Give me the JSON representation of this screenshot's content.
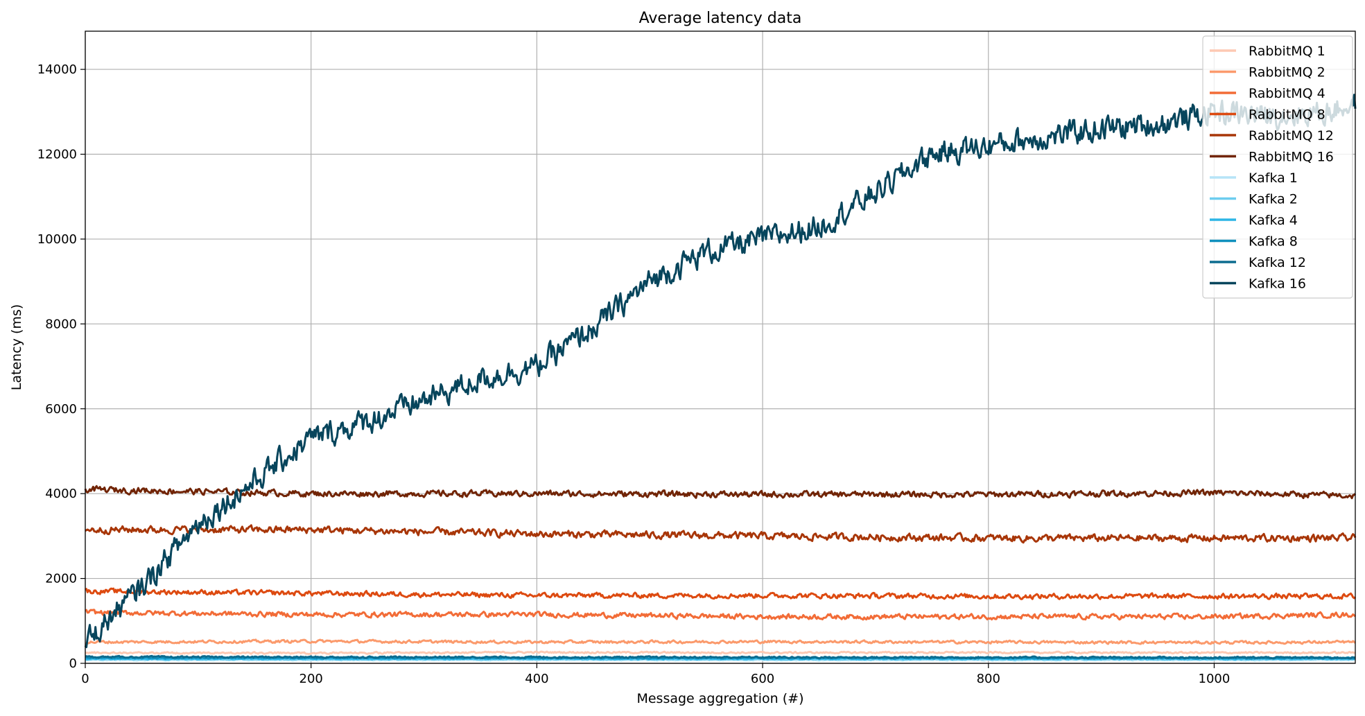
{
  "chart_data": {
    "type": "line",
    "title": "Average latency data",
    "xlabel": "Message aggregation (#)",
    "ylabel": "Latency (ms)",
    "xlim": [
      0,
      1125
    ],
    "ylim": [
      0,
      14900
    ],
    "x_ticks": [
      0,
      200,
      400,
      600,
      800,
      1000
    ],
    "y_ticks": [
      0,
      2000,
      4000,
      6000,
      8000,
      10000,
      12000,
      14000
    ],
    "grid": true,
    "legend_position": "top-right",
    "series": [
      {
        "name": "RabbitMQ 1",
        "color": "#fdc9b3",
        "base": 250,
        "jitter": 30,
        "points": [
          [
            0,
            250
          ],
          [
            200,
            240
          ],
          [
            400,
            260
          ],
          [
            600,
            250
          ],
          [
            800,
            255
          ],
          [
            1000,
            250
          ],
          [
            1125,
            250
          ]
        ]
      },
      {
        "name": "RabbitMQ 2",
        "color": "#fb9a6c",
        "base": 500,
        "jitter": 50,
        "points": [
          [
            0,
            500
          ],
          [
            200,
            520
          ],
          [
            400,
            500
          ],
          [
            600,
            510
          ],
          [
            800,
            500
          ],
          [
            1000,
            490
          ],
          [
            1125,
            500
          ]
        ]
      },
      {
        "name": "RabbitMQ 4",
        "color": "#f26c37",
        "base": 1150,
        "jitter": 90,
        "points": [
          [
            0,
            1200
          ],
          [
            200,
            1150
          ],
          [
            400,
            1150
          ],
          [
            600,
            1100
          ],
          [
            800,
            1100
          ],
          [
            1000,
            1100
          ],
          [
            1125,
            1150
          ]
        ]
      },
      {
        "name": "RabbitMQ 8",
        "color": "#dd4a10",
        "base": 1620,
        "jitter": 90,
        "points": [
          [
            0,
            1700
          ],
          [
            200,
            1650
          ],
          [
            400,
            1600
          ],
          [
            600,
            1600
          ],
          [
            800,
            1580
          ],
          [
            1000,
            1580
          ],
          [
            1125,
            1580
          ]
        ]
      },
      {
        "name": "RabbitMQ 12",
        "color": "#a83608",
        "base": 3050,
        "jitter": 130,
        "points": [
          [
            0,
            3150
          ],
          [
            200,
            3150
          ],
          [
            400,
            3050
          ],
          [
            600,
            3000
          ],
          [
            800,
            2950
          ],
          [
            1000,
            2950
          ],
          [
            1125,
            2950
          ]
        ]
      },
      {
        "name": "RabbitMQ 16",
        "color": "#712405",
        "base": 4000,
        "jitter": 110,
        "points": [
          [
            0,
            4100
          ],
          [
            200,
            4000
          ],
          [
            400,
            4000
          ],
          [
            600,
            3980
          ],
          [
            800,
            3980
          ],
          [
            1000,
            4020
          ],
          [
            1125,
            3950
          ]
        ]
      },
      {
        "name": "Kafka 1",
        "color": "#b6e4f7",
        "base": 80,
        "jitter": 20,
        "points": [
          [
            0,
            80
          ],
          [
            1125,
            80
          ]
        ]
      },
      {
        "name": "Kafka 2",
        "color": "#6dcdef",
        "base": 95,
        "jitter": 20,
        "points": [
          [
            0,
            95
          ],
          [
            1125,
            95
          ]
        ]
      },
      {
        "name": "Kafka 4",
        "color": "#2cb5e6",
        "base": 110,
        "jitter": 25,
        "points": [
          [
            0,
            110
          ],
          [
            1125,
            110
          ]
        ]
      },
      {
        "name": "Kafka 8",
        "color": "#1090bd",
        "base": 125,
        "jitter": 25,
        "points": [
          [
            0,
            130
          ],
          [
            1125,
            125
          ]
        ]
      },
      {
        "name": "Kafka 12",
        "color": "#0c6c8f",
        "base": 135,
        "jitter": 30,
        "points": [
          [
            0,
            150
          ],
          [
            1125,
            135
          ]
        ]
      },
      {
        "name": "Kafka 16",
        "color": "#07455c",
        "base": 0,
        "jitter": 450,
        "points": [
          [
            0,
            500
          ],
          [
            50,
            1800
          ],
          [
            100,
            3300
          ],
          [
            150,
            4300
          ],
          [
            200,
            5300
          ],
          [
            250,
            5700
          ],
          [
            300,
            6200
          ],
          [
            350,
            6700
          ],
          [
            400,
            7000
          ],
          [
            450,
            7900
          ],
          [
            500,
            9000
          ],
          [
            550,
            9700
          ],
          [
            600,
            10000
          ],
          [
            650,
            10300
          ],
          [
            700,
            11100
          ],
          [
            750,
            12000
          ],
          [
            800,
            12200
          ],
          [
            850,
            12400
          ],
          [
            900,
            12600
          ],
          [
            950,
            12700
          ],
          [
            1000,
            13000
          ],
          [
            1050,
            12900
          ],
          [
            1100,
            13000
          ],
          [
            1125,
            13200
          ]
        ]
      }
    ]
  }
}
